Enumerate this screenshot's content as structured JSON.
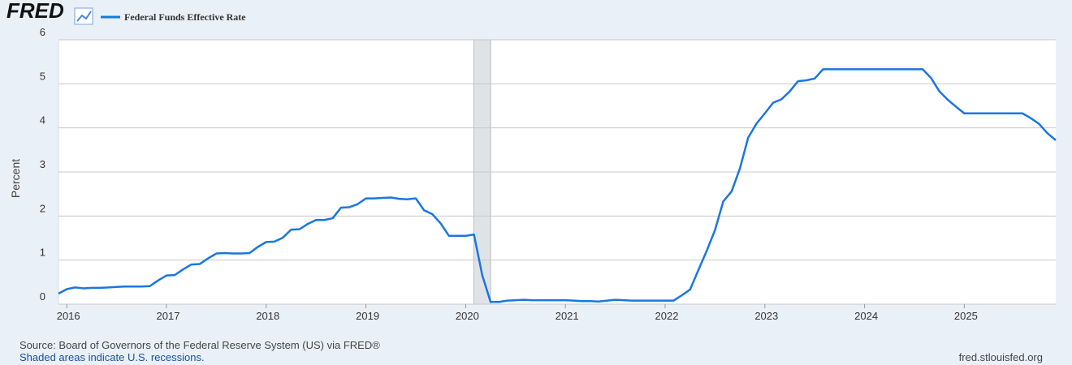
{
  "header": {
    "logo": "FRED"
  },
  "chart_data": {
    "type": "line",
    "ylabel": "Percent",
    "xlim": [
      2015.917,
      2025.917
    ],
    "xticks": [
      2016,
      2017,
      2018,
      2019,
      2020,
      2021,
      2022,
      2023,
      2024,
      2025
    ],
    "ylim": [
      0,
      6
    ],
    "yticks": [
      0,
      1,
      2,
      3,
      4,
      5,
      6
    ],
    "grid": true,
    "recessions": [
      [
        2020.083,
        2020.25
      ]
    ],
    "x": [
      2015.917,
      2016,
      2016.083,
      2016.167,
      2016.25,
      2016.333,
      2016.417,
      2016.5,
      2016.583,
      2016.667,
      2016.75,
      2016.833,
      2016.917,
      2017,
      2017.083,
      2017.167,
      2017.25,
      2017.333,
      2017.417,
      2017.5,
      2017.583,
      2017.667,
      2017.75,
      2017.833,
      2017.917,
      2018,
      2018.083,
      2018.167,
      2018.25,
      2018.333,
      2018.417,
      2018.5,
      2018.583,
      2018.667,
      2018.75,
      2018.833,
      2018.917,
      2019,
      2019.083,
      2019.167,
      2019.25,
      2019.333,
      2019.417,
      2019.5,
      2019.583,
      2019.667,
      2019.75,
      2019.833,
      2019.917,
      2020,
      2020.083,
      2020.167,
      2020.25,
      2020.333,
      2020.417,
      2020.5,
      2020.583,
      2020.667,
      2020.75,
      2020.833,
      2020.917,
      2021,
      2021.083,
      2021.167,
      2021.25,
      2021.333,
      2021.417,
      2021.5,
      2021.583,
      2021.667,
      2021.75,
      2021.833,
      2021.917,
      2022,
      2022.083,
      2022.167,
      2022.25,
      2022.333,
      2022.417,
      2022.5,
      2022.583,
      2022.667,
      2022.75,
      2022.833,
      2022.917,
      2023,
      2023.083,
      2023.167,
      2023.25,
      2023.333,
      2023.417,
      2023.5,
      2023.583,
      2023.667,
      2023.75,
      2023.833,
      2023.917,
      2024,
      2024.083,
      2024.167,
      2024.25,
      2024.333,
      2024.417,
      2024.5,
      2024.583,
      2024.667,
      2024.75,
      2024.833,
      2024.917,
      2025,
      2025.083,
      2025.167,
      2025.25,
      2025.333,
      2025.417,
      2025.5,
      2025.583,
      2025.667,
      2025.75,
      2025.833,
      2025.917
    ],
    "series": [
      {
        "name": "Federal Funds Effective Rate",
        "color": "#1a76e0",
        "values": [
          0.24,
          0.34,
          0.38,
          0.36,
          0.37,
          0.37,
          0.38,
          0.39,
          0.4,
          0.4,
          0.4,
          0.41,
          0.54,
          0.65,
          0.66,
          0.79,
          0.9,
          0.91,
          1.04,
          1.15,
          1.16,
          1.15,
          1.15,
          1.16,
          1.3,
          1.41,
          1.42,
          1.51,
          1.69,
          1.7,
          1.82,
          1.91,
          1.91,
          1.95,
          2.19,
          2.2,
          2.27,
          2.4,
          2.4,
          2.41,
          2.42,
          2.39,
          2.38,
          2.4,
          2.13,
          2.04,
          1.83,
          1.55,
          1.55,
          1.55,
          1.58,
          0.65,
          0.05,
          0.05,
          0.08,
          0.09,
          0.1,
          0.09,
          0.09,
          0.09,
          0.09,
          0.09,
          0.08,
          0.07,
          0.07,
          0.06,
          0.08,
          0.1,
          0.09,
          0.08,
          0.08,
          0.08,
          0.08,
          0.08,
          0.08,
          0.2,
          0.33,
          0.77,
          1.21,
          1.68,
          2.33,
          2.56,
          3.08,
          3.78,
          4.1,
          4.33,
          4.57,
          4.65,
          4.83,
          5.06,
          5.08,
          5.12,
          5.33,
          5.33,
          5.33,
          5.33,
          5.33,
          5.33,
          5.33,
          5.33,
          5.33,
          5.33,
          5.33,
          5.33,
          5.33,
          5.13,
          4.83,
          4.64,
          4.48,
          4.33,
          4.33,
          4.33,
          4.33,
          4.33,
          4.33,
          4.33,
          4.33,
          4.22,
          4.09,
          3.88,
          3.72
        ]
      }
    ]
  },
  "footer": {
    "source": "Source: Board of Governors of the Federal Reserve System (US) via FRED®",
    "note": "Shaded areas indicate U.S. recessions.",
    "site": "fred.stlouisfed.org"
  }
}
